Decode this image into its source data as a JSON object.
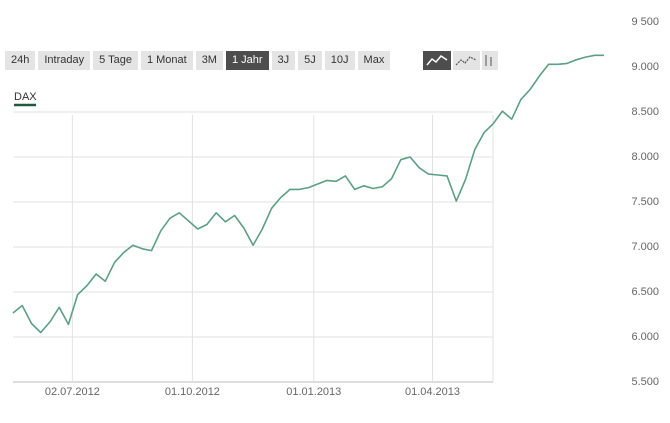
{
  "toolbar": {
    "buttons": [
      {
        "label": "24h"
      },
      {
        "label": "Intraday"
      },
      {
        "label": "5 Tage"
      },
      {
        "label": "1 Monat"
      },
      {
        "label": "3M"
      },
      {
        "label": "1 Jahr",
        "active": true
      },
      {
        "label": "3J"
      },
      {
        "label": "5J"
      },
      {
        "label": "10J"
      },
      {
        "label": "Max"
      }
    ]
  },
  "chart_data": {
    "type": "line",
    "x": [
      "2012-05-18",
      "2012-05-25",
      "2012-06-01",
      "2012-06-08",
      "2012-06-15",
      "2012-06-22",
      "2012-06-29",
      "2012-07-06",
      "2012-07-13",
      "2012-07-20",
      "2012-07-27",
      "2012-08-03",
      "2012-08-10",
      "2012-08-17",
      "2012-08-24",
      "2012-08-31",
      "2012-09-07",
      "2012-09-14",
      "2012-09-21",
      "2012-09-28",
      "2012-10-05",
      "2012-10-12",
      "2012-10-19",
      "2012-10-26",
      "2012-11-02",
      "2012-11-09",
      "2012-11-16",
      "2012-11-23",
      "2012-11-30",
      "2012-12-07",
      "2012-12-14",
      "2012-12-21",
      "2012-12-28",
      "2013-01-04",
      "2013-01-11",
      "2013-01-18",
      "2013-01-25",
      "2013-02-01",
      "2013-02-08",
      "2013-02-15",
      "2013-02-22",
      "2013-03-01",
      "2013-03-08",
      "2013-03-15",
      "2013-03-22",
      "2013-03-29",
      "2013-04-05",
      "2013-04-12",
      "2013-04-19",
      "2013-04-26",
      "2013-05-03",
      "2013-05-10",
      "2013-05-17",
      "2013-05-24",
      "2013-05-31",
      "2013-06-07",
      "2013-06-14",
      "2013-06-21",
      "2013-06-28",
      "2013-07-05",
      "2013-07-12",
      "2013-07-19",
      "2013-07-26",
      "2013-08-02",
      "2013-08-09"
    ],
    "series": [
      {
        "name": "DAX",
        "color": "#5c9f84",
        "legend_color": "#1d5b3f",
        "values": [
          6267,
          6350,
          6150,
          6050,
          6167,
          6330,
          6140,
          6470,
          6570,
          6700,
          6620,
          6830,
          6940,
          7020,
          6980,
          6960,
          7180,
          7320,
          7380,
          7290,
          7200,
          7250,
          7380,
          7280,
          7350,
          7210,
          7020,
          7200,
          7430,
          7550,
          7640,
          7640,
          7660,
          7700,
          7740,
          7730,
          7790,
          7640,
          7680,
          7650,
          7670,
          7760,
          7970,
          8000,
          7880,
          7810,
          7800,
          7790,
          7510,
          7750,
          8080,
          8270,
          8370,
          8510,
          8420,
          8640,
          8750,
          8900,
          9030,
          9030,
          9040,
          9080,
          9110,
          9130,
          9130
        ]
      }
    ],
    "xlim": [
      "2012-05-18",
      "2013-08-09"
    ],
    "xticks": [
      {
        "value": "2012-07-02",
        "label": "02.07.2012"
      },
      {
        "value": "2012-10-01",
        "label": "01.10.2012"
      },
      {
        "value": "2013-01-01",
        "label": "01.01.2013"
      },
      {
        "value": "2013-04-01",
        "label": "01.04.2013"
      }
    ],
    "ylim": [
      5500,
      9500
    ],
    "yticks": [
      {
        "value": 9500,
        "label": "9 500"
      },
      {
        "value": 9000,
        "label": "9.000"
      },
      {
        "value": 8500,
        "label": "8.500"
      },
      {
        "value": 8000,
        "label": "8.000"
      },
      {
        "value": 7500,
        "label": "7.500"
      },
      {
        "value": 7000,
        "label": "7.000"
      },
      {
        "value": 6500,
        "label": "6.500"
      },
      {
        "value": 6000,
        "label": "6.000"
      },
      {
        "value": 5500,
        "label": "5.500"
      }
    ],
    "grid": true
  }
}
